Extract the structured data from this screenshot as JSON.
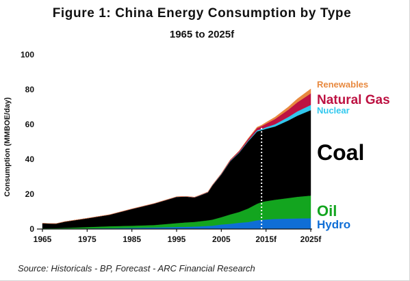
{
  "chart_data": {
    "type": "area",
    "stacked": true,
    "title": "Figure 1: China Energy Consumption by Type",
    "subtitle": "1965 to 2025f",
    "ylabel": "Consumption (MMBOE/day)",
    "xlabel": "",
    "ylim": [
      0,
      100
    ],
    "yticks": [
      "0",
      "20",
      "40",
      "60",
      "80",
      "100"
    ],
    "xtick_labels": [
      "1965",
      "1975",
      "1985",
      "1995",
      "2005",
      "2015f",
      "2025f"
    ],
    "grid": false,
    "legend": "inline-right",
    "divider_year": 2014,
    "divider_style": "white-dotted",
    "x": [
      1965,
      1968,
      1970,
      1975,
      1980,
      1985,
      1990,
      1995,
      1997,
      1999,
      2000,
      2002,
      2003,
      2005,
      2007,
      2009,
      2011,
      2013,
      2014,
      2015,
      2017,
      2020,
      2022,
      2025
    ],
    "series": [
      {
        "name": "Hydro",
        "color": "#0f6ed6",
        "values": [
          0.2,
          0.2,
          0.25,
          0.35,
          0.5,
          0.7,
          0.9,
          1.2,
          1.3,
          1.4,
          1.5,
          1.8,
          1.9,
          2.6,
          3.0,
          3.6,
          4.0,
          5.0,
          5.3,
          5.5,
          5.8,
          6.0,
          6.1,
          6.2
        ]
      },
      {
        "name": "Oil",
        "color": "#13a51f",
        "values": [
          0.2,
          0.3,
          0.4,
          0.8,
          1.1,
          1.2,
          1.4,
          2.2,
          2.5,
          2.7,
          2.9,
          3.2,
          3.5,
          4.2,
          5.4,
          6.2,
          7.8,
          9.5,
          10.2,
          10.5,
          11.0,
          11.8,
          12.4,
          13.0
        ]
      },
      {
        "name": "Coal",
        "color": "#000000",
        "values": [
          2.9,
          2.6,
          3.6,
          5.0,
          6.6,
          9.6,
          12.3,
          15.0,
          14.8,
          14.0,
          14.6,
          16.0,
          19.5,
          24.5,
          30.5,
          34.0,
          38.5,
          41.5,
          41.2,
          41.5,
          42.0,
          44.5,
          46.5,
          49.0
        ]
      },
      {
        "name": "Nuclear",
        "color": "#31c8ee",
        "values": [
          0,
          0,
          0,
          0,
          0,
          0,
          0,
          0.05,
          0.05,
          0.05,
          0.1,
          0.1,
          0.15,
          0.2,
          0.25,
          0.3,
          0.4,
          0.6,
          0.7,
          0.9,
          1.3,
          2.0,
          2.5,
          3.0
        ]
      },
      {
        "name": "Natural Gas",
        "color": "#bd1242",
        "values": [
          0,
          0,
          0,
          0.05,
          0.05,
          0.1,
          0.1,
          0.1,
          0.1,
          0.15,
          0.15,
          0.2,
          0.2,
          0.3,
          0.5,
          0.7,
          1.0,
          1.4,
          1.6,
          2.0,
          3.0,
          4.2,
          5.2,
          6.6
        ]
      },
      {
        "name": "Renewables",
        "color": "#e8893f",
        "values": [
          0,
          0,
          0,
          0,
          0,
          0,
          0,
          0,
          0,
          0,
          0,
          0,
          0,
          0.02,
          0.05,
          0.1,
          0.3,
          0.5,
          0.6,
          0.8,
          1.1,
          1.6,
          2.0,
          2.6
        ]
      }
    ],
    "source_note": "Source: Historicals - BP, Forecast - ARC Financial Research"
  }
}
